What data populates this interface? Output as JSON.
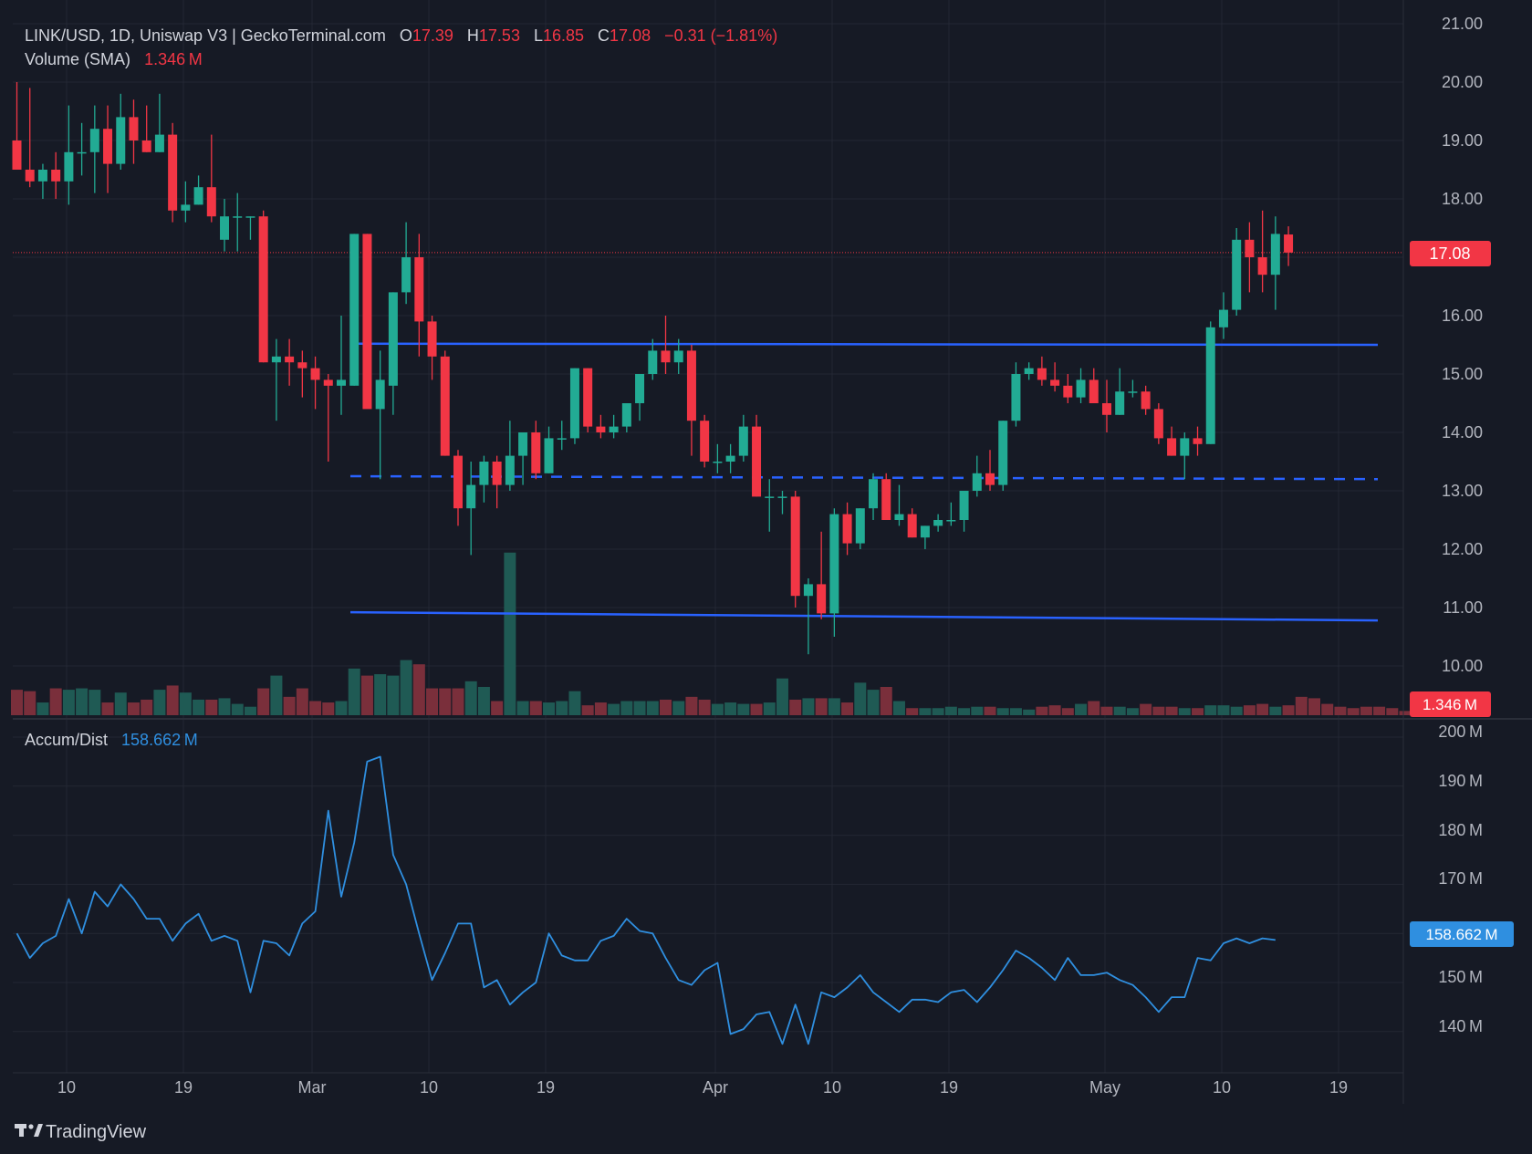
{
  "header": {
    "symbol_line": "LINK/USD, 1D, Uniswap V3 | GeckoTerminal.com",
    "open_label": "O",
    "open_value": "17.39",
    "high_label": "H",
    "high_value": "17.53",
    "low_label": "L",
    "low_value": "16.85",
    "close_label": "C",
    "close_value": "17.08",
    "change_value": "−0.31 (−1.81%)",
    "volume_label": "Volume (SMA)",
    "volume_value": "1.346 M"
  },
  "price_axis": {
    "ticks": [
      "21.00",
      "20.00",
      "19.00",
      "18.00",
      "16.00",
      "15.00",
      "14.00",
      "13.00",
      "12.00",
      "11.00",
      "10.00"
    ],
    "last_price_badge": "17.08",
    "last_volume_badge": "1.346 M"
  },
  "ad_panel": {
    "label": "Accum/Dist",
    "value": "158.662 M",
    "ticks": [
      "200 M",
      "190 M",
      "180 M",
      "170 M",
      "150 M",
      "140 M"
    ],
    "badge": "158.662 M"
  },
  "time_axis": {
    "labels": [
      "10",
      "19",
      "Mar",
      "10",
      "19",
      "Apr",
      "10",
      "19",
      "May",
      "10",
      "19"
    ]
  },
  "branding": {
    "logo_text": "TradingView"
  },
  "colors": {
    "background": "#161a25",
    "grid": "#232733",
    "up": "#22ab94",
    "down": "#f23645",
    "volume_up": "#1f5a54",
    "volume_down": "#7a2f3b",
    "trendline": "#2962ff",
    "ad_line": "#2f8fe0",
    "axis_text": "#b2b5be",
    "header_text": "#d1d4dc"
  },
  "chart_data": [
    {
      "type": "candlestick",
      "title": "LINK/USD, 1D, Uniswap V3 | GeckoTerminal.com",
      "ylim": [
        9.4,
        21.2
      ],
      "x_start": "Feb 6",
      "candles": [
        {
          "o": 19.0,
          "h": 20.0,
          "l": 18.5,
          "c": 18.5
        },
        {
          "o": 18.5,
          "h": 19.9,
          "l": 18.2,
          "c": 18.3
        },
        {
          "o": 18.3,
          "h": 18.6,
          "l": 18.0,
          "c": 18.5
        },
        {
          "o": 18.5,
          "h": 18.8,
          "l": 18.0,
          "c": 18.3
        },
        {
          "o": 18.3,
          "h": 19.6,
          "l": 17.9,
          "c": 18.8
        },
        {
          "o": 18.8,
          "h": 19.3,
          "l": 18.4,
          "c": 18.8
        },
        {
          "o": 18.8,
          "h": 19.6,
          "l": 18.1,
          "c": 19.2
        },
        {
          "o": 19.2,
          "h": 19.6,
          "l": 18.1,
          "c": 18.6
        },
        {
          "o": 18.6,
          "h": 19.8,
          "l": 18.5,
          "c": 19.4
        },
        {
          "o": 19.4,
          "h": 19.7,
          "l": 18.6,
          "c": 19.0
        },
        {
          "o": 19.0,
          "h": 19.6,
          "l": 18.8,
          "c": 18.8
        },
        {
          "o": 18.8,
          "h": 19.8,
          "l": 18.8,
          "c": 19.1
        },
        {
          "o": 19.1,
          "h": 19.3,
          "l": 17.6,
          "c": 17.8
        },
        {
          "o": 17.8,
          "h": 18.3,
          "l": 17.6,
          "c": 17.9
        },
        {
          "o": 17.9,
          "h": 18.4,
          "l": 17.9,
          "c": 18.2
        },
        {
          "o": 18.2,
          "h": 19.1,
          "l": 17.6,
          "c": 17.7
        },
        {
          "o": 17.3,
          "h": 18.0,
          "l": 17.1,
          "c": 17.7
        },
        {
          "o": 17.7,
          "h": 18.1,
          "l": 17.1,
          "c": 17.7
        },
        {
          "o": 17.7,
          "h": 17.7,
          "l": 17.3,
          "c": 17.7
        },
        {
          "o": 17.7,
          "h": 17.8,
          "l": 15.2,
          "c": 15.2
        },
        {
          "o": 15.2,
          "h": 15.6,
          "l": 14.2,
          "c": 15.3
        },
        {
          "o": 15.3,
          "h": 15.6,
          "l": 14.8,
          "c": 15.2
        },
        {
          "o": 15.2,
          "h": 15.4,
          "l": 14.6,
          "c": 15.1
        },
        {
          "o": 15.1,
          "h": 15.3,
          "l": 14.4,
          "c": 14.9
        },
        {
          "o": 14.9,
          "h": 15.0,
          "l": 13.5,
          "c": 14.8
        },
        {
          "o": 14.8,
          "h": 16.0,
          "l": 14.3,
          "c": 14.9
        },
        {
          "o": 14.8,
          "h": 17.4,
          "l": 14.8,
          "c": 17.4
        },
        {
          "o": 17.4,
          "h": 17.4,
          "l": 14.5,
          "c": 14.4
        },
        {
          "o": 14.4,
          "h": 15.4,
          "l": 13.2,
          "c": 14.9
        },
        {
          "o": 14.8,
          "h": 16.4,
          "l": 14.3,
          "c": 16.4
        },
        {
          "o": 16.4,
          "h": 17.6,
          "l": 16.2,
          "c": 17.0
        },
        {
          "o": 17.0,
          "h": 17.4,
          "l": 15.3,
          "c": 15.9
        },
        {
          "o": 15.9,
          "h": 16.0,
          "l": 14.9,
          "c": 15.3
        },
        {
          "o": 15.3,
          "h": 15.4,
          "l": 13.6,
          "c": 13.6
        },
        {
          "o": 13.6,
          "h": 13.7,
          "l": 12.4,
          "c": 12.7
        },
        {
          "o": 12.7,
          "h": 13.5,
          "l": 11.9,
          "c": 13.1
        },
        {
          "o": 13.1,
          "h": 13.6,
          "l": 12.8,
          "c": 13.5
        },
        {
          "o": 13.5,
          "h": 13.6,
          "l": 12.7,
          "c": 13.1
        },
        {
          "o": 13.1,
          "h": 14.2,
          "l": 13.0,
          "c": 13.6
        },
        {
          "o": 13.6,
          "h": 14.0,
          "l": 13.1,
          "c": 14.0
        },
        {
          "o": 14.0,
          "h": 14.2,
          "l": 13.2,
          "c": 13.3
        },
        {
          "o": 13.3,
          "h": 14.1,
          "l": 13.3,
          "c": 13.9
        },
        {
          "o": 13.9,
          "h": 14.2,
          "l": 13.7,
          "c": 13.9
        },
        {
          "o": 13.9,
          "h": 15.1,
          "l": 13.8,
          "c": 15.1
        },
        {
          "o": 15.1,
          "h": 15.1,
          "l": 14.0,
          "c": 14.1
        },
        {
          "o": 14.1,
          "h": 14.3,
          "l": 13.9,
          "c": 14.0
        },
        {
          "o": 14.0,
          "h": 14.3,
          "l": 13.9,
          "c": 14.1
        },
        {
          "o": 14.1,
          "h": 14.5,
          "l": 14.0,
          "c": 14.5
        },
        {
          "o": 14.5,
          "h": 15.0,
          "l": 14.2,
          "c": 15.0
        },
        {
          "o": 15.0,
          "h": 15.6,
          "l": 14.9,
          "c": 15.4
        },
        {
          "o": 15.4,
          "h": 16.0,
          "l": 15.0,
          "c": 15.2
        },
        {
          "o": 15.2,
          "h": 15.6,
          "l": 15.0,
          "c": 15.4
        },
        {
          "o": 15.4,
          "h": 15.5,
          "l": 13.6,
          "c": 14.2
        },
        {
          "o": 14.2,
          "h": 14.3,
          "l": 13.4,
          "c": 13.5
        },
        {
          "o": 13.5,
          "h": 13.8,
          "l": 13.3,
          "c": 13.5
        },
        {
          "o": 13.5,
          "h": 13.8,
          "l": 13.3,
          "c": 13.6
        },
        {
          "o": 13.6,
          "h": 14.3,
          "l": 13.5,
          "c": 14.1
        },
        {
          "o": 14.1,
          "h": 14.3,
          "l": 12.9,
          "c": 12.9
        },
        {
          "o": 12.9,
          "h": 13.2,
          "l": 12.3,
          "c": 12.9
        },
        {
          "o": 12.9,
          "h": 13.0,
          "l": 12.6,
          "c": 12.9
        },
        {
          "o": 12.9,
          "h": 13.0,
          "l": 11.0,
          "c": 11.2
        },
        {
          "o": 11.2,
          "h": 11.5,
          "l": 10.2,
          "c": 11.4
        },
        {
          "o": 11.4,
          "h": 12.3,
          "l": 10.8,
          "c": 10.9
        },
        {
          "o": 10.9,
          "h": 12.7,
          "l": 10.5,
          "c": 12.6
        },
        {
          "o": 12.6,
          "h": 12.8,
          "l": 11.9,
          "c": 12.1
        },
        {
          "o": 12.1,
          "h": 12.7,
          "l": 12.0,
          "c": 12.7
        },
        {
          "o": 12.7,
          "h": 13.3,
          "l": 12.5,
          "c": 13.2
        },
        {
          "o": 13.2,
          "h": 13.3,
          "l": 12.5,
          "c": 12.5
        },
        {
          "o": 12.5,
          "h": 13.1,
          "l": 12.4,
          "c": 12.6
        },
        {
          "o": 12.6,
          "h": 12.7,
          "l": 12.2,
          "c": 12.2
        },
        {
          "o": 12.2,
          "h": 12.4,
          "l": 12.0,
          "c": 12.4
        },
        {
          "o": 12.4,
          "h": 12.6,
          "l": 12.3,
          "c": 12.5
        },
        {
          "o": 12.5,
          "h": 12.8,
          "l": 12.4,
          "c": 12.5
        },
        {
          "o": 12.5,
          "h": 13.0,
          "l": 12.3,
          "c": 13.0
        },
        {
          "o": 13.0,
          "h": 13.6,
          "l": 12.9,
          "c": 13.3
        },
        {
          "o": 13.3,
          "h": 13.7,
          "l": 13.0,
          "c": 13.1
        },
        {
          "o": 13.1,
          "h": 14.2,
          "l": 13.0,
          "c": 14.2
        },
        {
          "o": 14.2,
          "h": 15.2,
          "l": 14.1,
          "c": 15.0
        },
        {
          "o": 15.0,
          "h": 15.2,
          "l": 14.9,
          "c": 15.1
        },
        {
          "o": 15.1,
          "h": 15.3,
          "l": 14.8,
          "c": 14.9
        },
        {
          "o": 14.9,
          "h": 15.2,
          "l": 14.7,
          "c": 14.8
        },
        {
          "o": 14.8,
          "h": 15.0,
          "l": 14.5,
          "c": 14.6
        },
        {
          "o": 14.6,
          "h": 15.1,
          "l": 14.5,
          "c": 14.9
        },
        {
          "o": 14.9,
          "h": 15.1,
          "l": 14.5,
          "c": 14.5
        },
        {
          "o": 14.5,
          "h": 14.9,
          "l": 14.0,
          "c": 14.3
        },
        {
          "o": 14.3,
          "h": 15.1,
          "l": 14.3,
          "c": 14.7
        },
        {
          "o": 14.7,
          "h": 14.9,
          "l": 14.6,
          "c": 14.7
        },
        {
          "o": 14.7,
          "h": 14.8,
          "l": 14.3,
          "c": 14.4
        },
        {
          "o": 14.4,
          "h": 14.5,
          "l": 13.8,
          "c": 13.9
        },
        {
          "o": 13.9,
          "h": 14.1,
          "l": 13.6,
          "c": 13.6
        },
        {
          "o": 13.6,
          "h": 14.0,
          "l": 13.2,
          "c": 13.9
        },
        {
          "o": 13.9,
          "h": 14.1,
          "l": 13.6,
          "c": 13.8
        },
        {
          "o": 13.8,
          "h": 15.9,
          "l": 13.8,
          "c": 15.8
        },
        {
          "o": 15.8,
          "h": 16.4,
          "l": 15.6,
          "c": 16.1
        },
        {
          "o": 16.1,
          "h": 17.5,
          "l": 16.0,
          "c": 17.3
        },
        {
          "o": 17.3,
          "h": 17.6,
          "l": 16.4,
          "c": 17.0
        },
        {
          "o": 17.0,
          "h": 17.8,
          "l": 16.4,
          "c": 16.7
        },
        {
          "o": 16.7,
          "h": 17.7,
          "l": 16.1,
          "c": 17.4
        },
        {
          "o": 17.39,
          "h": 17.53,
          "l": 16.85,
          "c": 17.08
        }
      ],
      "horizontal_levels": [
        {
          "style": "solid",
          "y_start": 15.52,
          "y_end": 15.5
        },
        {
          "style": "dashed",
          "y_start": 13.25,
          "y_end": 13.2
        },
        {
          "style": "solid",
          "y_start": 10.92,
          "y_end": 10.78
        }
      ],
      "last_price": 17.08
    },
    {
      "type": "bar",
      "title": "Volume (SMA)",
      "last_value": 1.346,
      "values": [
        1.8,
        1.7,
        0.9,
        1.9,
        1.8,
        1.9,
        1.8,
        0.9,
        1.6,
        0.9,
        1.1,
        1.8,
        2.1,
        1.6,
        1.1,
        1.1,
        1.2,
        0.8,
        0.6,
        1.9,
        2.8,
        1.3,
        1.9,
        1.0,
        0.9,
        1.0,
        3.3,
        2.8,
        2.9,
        2.8,
        3.9,
        3.6,
        1.9,
        1.9,
        1.9,
        2.4,
        2.0,
        1.0,
        11.5,
        1.0,
        1.0,
        0.9,
        1.0,
        1.7,
        0.7,
        0.9,
        0.8,
        1.0,
        1.0,
        1.0,
        1.1,
        1.0,
        1.3,
        1.1,
        0.8,
        0.9,
        0.8,
        0.8,
        0.9,
        2.6,
        1.1,
        1.2,
        1.2,
        1.2,
        0.9,
        2.3,
        1.8,
        2.0,
        1.0,
        0.5,
        0.5,
        0.5,
        0.6,
        0.5,
        0.6,
        0.6,
        0.5,
        0.5,
        0.4,
        0.6,
        0.7,
        0.5,
        0.8,
        1.0,
        0.6,
        0.6,
        0.5,
        0.8,
        0.6,
        0.6,
        0.5,
        0.5,
        0.7,
        0.7,
        0.6,
        0.7,
        0.8,
        0.6,
        0.7,
        1.3,
        1.2,
        0.8,
        0.6,
        0.5,
        0.6,
        0.6,
        0.5,
        0.3
      ]
    },
    {
      "type": "line",
      "title": "Accum/Dist",
      "ylim": [
        132,
        204
      ],
      "last_value": 158.662,
      "values": [
        160,
        155,
        158,
        159.5,
        167,
        160,
        168.5,
        165.5,
        170,
        167,
        163,
        163,
        158.5,
        162,
        164,
        158.5,
        159.5,
        158.5,
        148,
        158.5,
        158,
        155.5,
        162,
        164.5,
        185,
        167.5,
        178.5,
        195,
        196,
        176,
        170,
        160,
        150.5,
        156,
        162,
        162,
        149,
        150.5,
        145.5,
        148,
        150,
        160,
        155.5,
        154.5,
        154.5,
        158.5,
        159.5,
        163,
        160.5,
        160,
        155,
        150.5,
        149.5,
        152.5,
        154,
        139.5,
        140.5,
        143.5,
        144,
        137.5,
        145.5,
        137.5,
        148,
        147,
        149,
        151.5,
        148,
        146,
        144,
        146.5,
        146.5,
        146,
        148,
        148.5,
        146,
        149,
        152.5,
        156.5,
        155,
        153,
        150.5,
        155,
        151.5,
        151.5,
        152,
        150.5,
        149.5,
        147,
        144,
        147,
        147,
        155,
        154.5,
        158,
        159,
        158,
        159,
        158.662
      ]
    }
  ]
}
